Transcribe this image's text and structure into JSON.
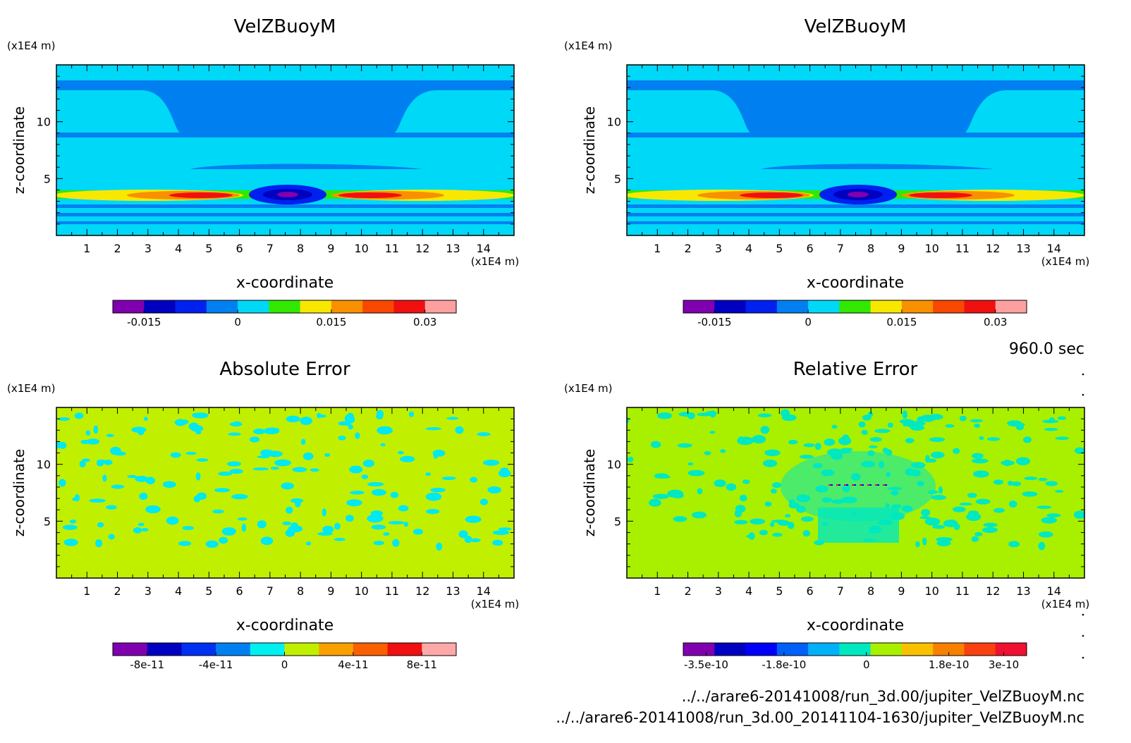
{
  "time_label": "960.0 sec",
  "file_paths": [
    "../../arare6-20141008/run_3d.00/jupiter_VelZBuoyM.nc",
    "../../arare6-20141008/run_3d.00_20141104-1630/jupiter_VelZBuoyM.nc"
  ],
  "colors": {
    "field_bg": "#00d8f8",
    "dark_band": "#0080f0",
    "error_bg_abs": "#c0f000",
    "error_bg_rel": "#a8f000",
    "error_spot": "#00e8f0"
  },
  "chart_data": [
    {
      "type": "heatmap",
      "title": "VelZBuoyM",
      "xlabel": "x-coordinate",
      "ylabel": "z-coordinate",
      "x_unit": "(x1E4 m)",
      "y_unit": "(x1E4 m)",
      "xlim": [
        0,
        15
      ],
      "ylim": [
        0,
        15
      ],
      "x_ticks": [
        "1",
        "2",
        "3",
        "4",
        "5",
        "6",
        "7",
        "8",
        "9",
        "10",
        "11",
        "12",
        "13",
        "14"
      ],
      "y_ticks": [
        "5",
        "10"
      ],
      "colorbar": {
        "colors": [
          "#8000b0",
          "#0000c0",
          "#0020f0",
          "#0080f0",
          "#00d8f8",
          "#30e800",
          "#f8e800",
          "#f89000",
          "#f84800",
          "#f01010",
          "#ffa0a0"
        ],
        "tick_labels": [
          "-0.015",
          "0",
          "0.015",
          "0.03"
        ],
        "range": [
          -0.02,
          0.035
        ]
      }
    },
    {
      "type": "heatmap",
      "title": "VelZBuoyM",
      "xlabel": "x-coordinate",
      "ylabel": "z-coordinate",
      "x_unit": "(x1E4 m)",
      "y_unit": "(x1E4 m)",
      "xlim": [
        0,
        15
      ],
      "ylim": [
        0,
        15
      ],
      "x_ticks": [
        "1",
        "2",
        "3",
        "4",
        "5",
        "6",
        "7",
        "8",
        "9",
        "10",
        "11",
        "12",
        "13",
        "14"
      ],
      "y_ticks": [
        "5",
        "10"
      ],
      "colorbar": {
        "colors": [
          "#8000b0",
          "#0000c0",
          "#0020f0",
          "#0080f0",
          "#00d8f8",
          "#30e800",
          "#f8e800",
          "#f89000",
          "#f84800",
          "#f01010",
          "#ffa0a0"
        ],
        "tick_labels": [
          "-0.015",
          "0",
          "0.015",
          "0.03"
        ],
        "range": [
          -0.02,
          0.035
        ]
      }
    },
    {
      "type": "heatmap",
      "title": "Absolute Error",
      "xlabel": "x-coordinate",
      "ylabel": "z-coordinate",
      "x_unit": "(x1E4 m)",
      "y_unit": "(x1E4 m)",
      "xlim": [
        0,
        15
      ],
      "ylim": [
        0,
        15
      ],
      "x_ticks": [
        "1",
        "2",
        "3",
        "4",
        "5",
        "6",
        "7",
        "8",
        "9",
        "10",
        "11",
        "12",
        "13",
        "14"
      ],
      "y_ticks": [
        "5",
        "10"
      ],
      "colorbar": {
        "colors": [
          "#8000b0",
          "#0000c0",
          "#0030f0",
          "#0080f0",
          "#00f0f0",
          "#c0f000",
          "#f8a000",
          "#f86000",
          "#f01010",
          "#ffa8a8"
        ],
        "tick_labels": [
          "-8e-11",
          "-4e-11",
          "0",
          "4e-11",
          "8e-11"
        ],
        "range": [
          -1e-10,
          1e-10
        ]
      }
    },
    {
      "type": "heatmap",
      "title": "Relative Error",
      "xlabel": "x-coordinate",
      "ylabel": "z-coordinate",
      "x_unit": "(x1E4 m)",
      "y_unit": "(x1E4 m)",
      "xlim": [
        0,
        15
      ],
      "ylim": [
        0,
        15
      ],
      "x_ticks": [
        "1",
        "2",
        "3",
        "4",
        "5",
        "6",
        "7",
        "8",
        "9",
        "10",
        "11",
        "12",
        "13",
        "14"
      ],
      "y_ticks": [
        "5",
        "10"
      ],
      "colorbar": {
        "colors": [
          "#8000b0",
          "#0000c0",
          "#0000f8",
          "#0060f8",
          "#00b0f8",
          "#00e8c0",
          "#a8f000",
          "#f8c000",
          "#f88000",
          "#f84010",
          "#f01030"
        ],
        "tick_labels": [
          "-3.5e-10",
          "-1.8e-10",
          "0",
          "1.8e-10",
          "3e-10"
        ],
        "range": [
          -4e-10,
          3.5e-10
        ]
      }
    }
  ]
}
